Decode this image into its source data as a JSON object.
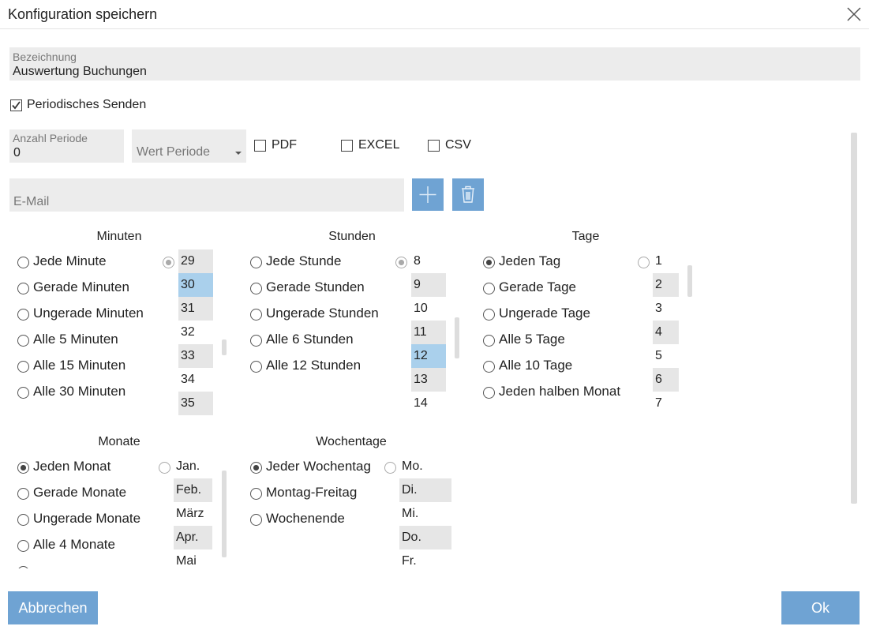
{
  "dialog": {
    "title": "Konfiguration speichern",
    "name_field": {
      "label": "Bezeichnung",
      "value": "Auswertung Buchungen"
    },
    "periodic": "Periodisches Senden",
    "count_field": {
      "label": "Anzahl Periode",
      "value": "0"
    },
    "period_select": "Wert Periode",
    "formats": [
      "PDF",
      "EXCEL",
      "CSV"
    ],
    "email_placeholder": "E-Mail",
    "sections": [
      {
        "title": "Minuten",
        "options": [
          "Jede Minute",
          "Gerade Minuten",
          "Ungerade Minuten",
          "Alle 5 Minuten",
          "Alle 15 Minuten",
          "Alle 30 Minuten"
        ],
        "list": [
          "29",
          "30",
          "31",
          "32",
          "33",
          "34",
          "35"
        ]
      },
      {
        "title": "Stunden",
        "options": [
          "Jede Stunde",
          "Gerade Stunden",
          "Ungerade Stunden",
          "Alle 6 Stunden",
          "Alle 12 Stunden"
        ],
        "list": [
          "8",
          "9",
          "10",
          "11",
          "12",
          "13",
          "14"
        ]
      },
      {
        "title": "Tage",
        "options": [
          "Jeden Tag",
          "Gerade Tage",
          "Ungerade Tage",
          "Alle 5 Tage",
          "Alle 10 Tage",
          "Jeden halben Monat"
        ],
        "list": [
          "1",
          "2",
          "3",
          "4",
          "5",
          "6",
          "7"
        ]
      },
      {
        "title": "Monate",
        "options": [
          "Jeden Monat",
          "Gerade Monate",
          "Ungerade Monate",
          "Alle 4 Monate"
        ],
        "list": [
          "Jan.",
          "Feb.",
          "März",
          "Apr.",
          "Mai"
        ]
      },
      {
        "title": "Wochentage",
        "options": [
          "Jeder Wochentag",
          "Montag-Freitag",
          "Wochenende"
        ],
        "list": [
          "Mo.",
          "Di.",
          "Mi.",
          "Do.",
          "Fr."
        ]
      }
    ],
    "buttons": {
      "cancel": "Abbrechen",
      "ok": "Ok"
    }
  }
}
